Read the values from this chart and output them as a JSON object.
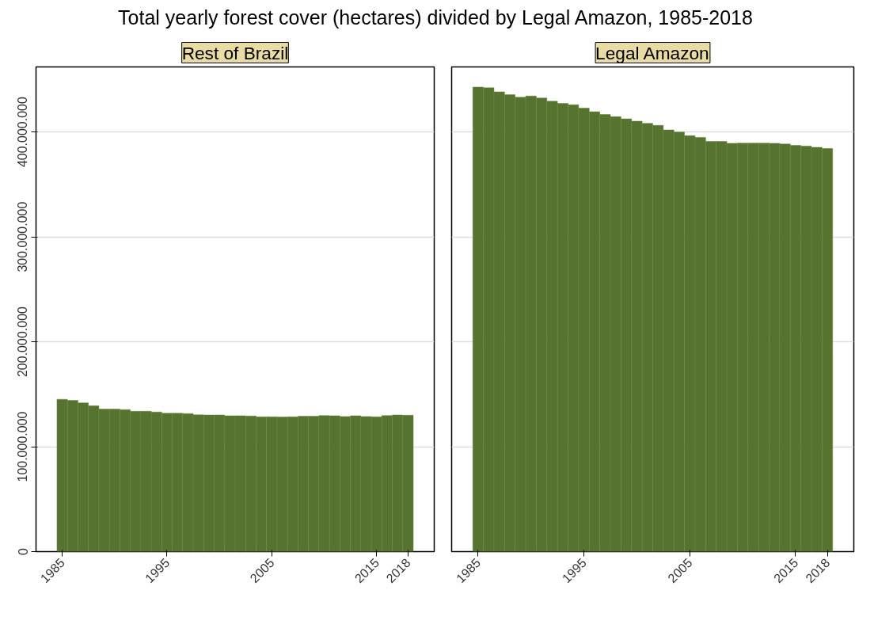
{
  "chart_data": [
    {
      "type": "bar",
      "title": "Total yearly forest cover (hectares) divided by Legal Amazon, 1985-2018",
      "subtitle": "Rest of Brazil",
      "color": "#56732f",
      "x": [
        1985,
        1986,
        1987,
        1988,
        1989,
        1990,
        1991,
        1992,
        1993,
        1994,
        1995,
        1996,
        1997,
        1998,
        1999,
        2000,
        2001,
        2002,
        2003,
        2004,
        2005,
        2006,
        2007,
        2008,
        2009,
        2010,
        2011,
        2012,
        2013,
        2014,
        2015,
        2016,
        2017,
        2018
      ],
      "values": [
        145200000,
        144200000,
        141800000,
        139000000,
        135900000,
        135900000,
        135400000,
        133800000,
        133800000,
        133100000,
        131900000,
        131900000,
        131600000,
        130400000,
        130200000,
        130200000,
        129500000,
        129500000,
        129300000,
        128500000,
        128500000,
        128300000,
        128500000,
        129000000,
        129000000,
        129700000,
        129500000,
        128800000,
        129500000,
        128800000,
        128500000,
        129700000,
        130200000,
        130000000
      ],
      "xlim": [
        1982.5,
        2020.5
      ],
      "xticks": [
        1985,
        1995,
        2005,
        2015,
        2018
      ],
      "ylim": [
        0,
        462000000
      ],
      "yticks": [
        0,
        {
          "value": 100000000,
          "label": "100.000.000"
        },
        {
          "value": 200000000,
          "label": "200.000.000"
        },
        {
          "value": 300000000,
          "label": "300.000.000"
        },
        {
          "value": 400000000,
          "label": "400.000.000"
        }
      ],
      "grid": "y"
    },
    {
      "type": "bar",
      "subtitle": "Legal Amazon",
      "color": "#56732f",
      "x": [
        1985,
        1986,
        1987,
        1988,
        1989,
        1990,
        1991,
        1992,
        1993,
        1994,
        1995,
        1996,
        1997,
        1998,
        1999,
        2000,
        2001,
        2002,
        2003,
        2004,
        2005,
        2006,
        2007,
        2008,
        2009,
        2010,
        2011,
        2012,
        2013,
        2014,
        2015,
        2016,
        2017,
        2018
      ],
      "values": [
        442800000,
        442100000,
        438300000,
        435500000,
        433100000,
        434300000,
        432400000,
        429300000,
        427200000,
        426000000,
        422700000,
        419300000,
        416700000,
        414600000,
        412500000,
        410300000,
        408200000,
        406300000,
        402000000,
        399900000,
        396500000,
        394900000,
        391100000,
        391100000,
        389200000,
        389400000,
        389400000,
        389400000,
        389200000,
        388500000,
        387200000,
        386500000,
        385400000,
        384200000
      ],
      "xlim": [
        1982.5,
        2020.5
      ],
      "xticks": [
        1985,
        1995,
        2005,
        2015,
        2018
      ],
      "ylim": [
        0,
        462000000
      ],
      "yticks": [
        0,
        100000000,
        200000000,
        300000000,
        400000000
      ],
      "grid": "y",
      "tick_labels": "x"
    }
  ]
}
